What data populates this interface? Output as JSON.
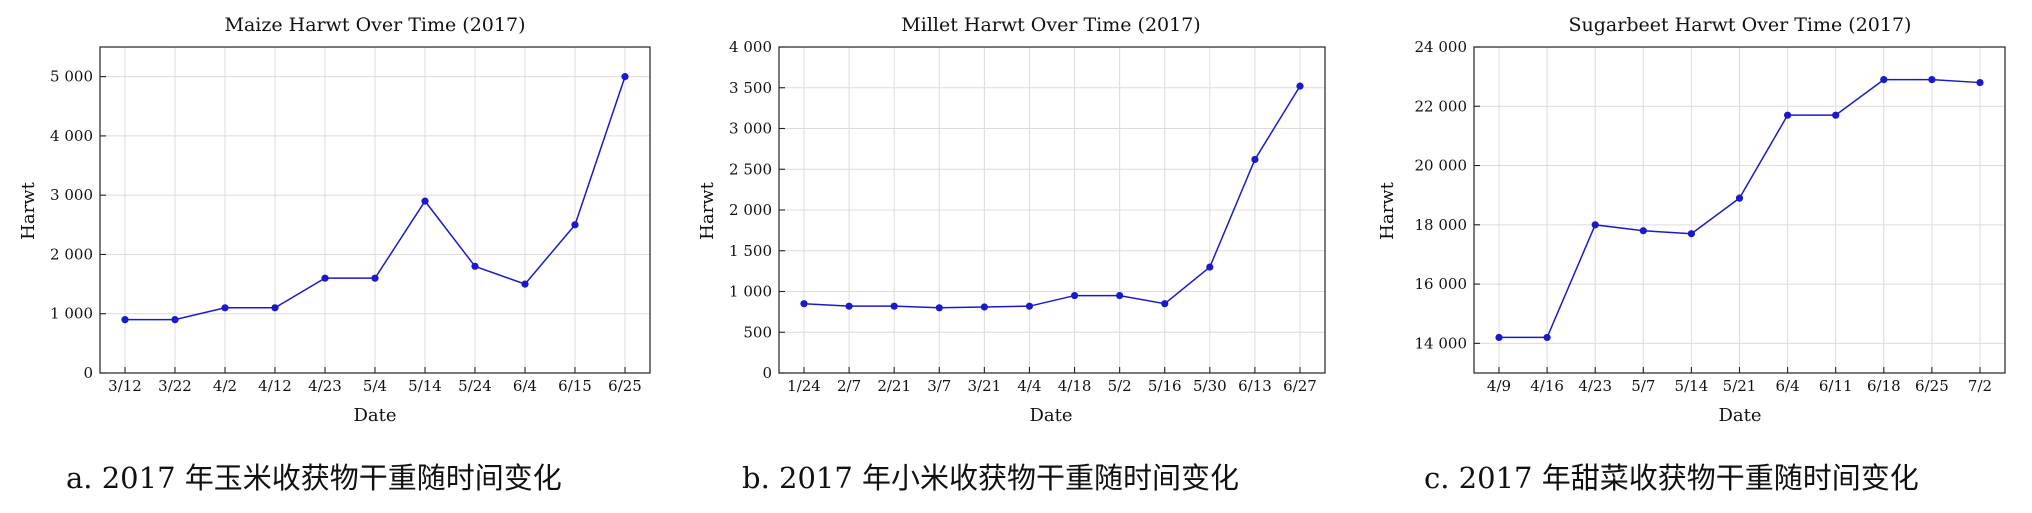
{
  "colors": {
    "series": "#1a1acc",
    "grid": "#dcdcdc",
    "axis": "#222222"
  },
  "chart_data": [
    {
      "type": "line",
      "title": "Maize Harwt Over Time (2017)",
      "xlabel": "Date",
      "ylabel": "Harwt",
      "categories": [
        "3/12",
        "3/22",
        "4/2",
        "4/12",
        "4/23",
        "5/4",
        "5/14",
        "5/24",
        "6/4",
        "6/15",
        "6/25"
      ],
      "series": [
        {
          "values": [
            900,
            900,
            1100,
            1100,
            1600,
            1600,
            2900,
            1800,
            1500,
            2500,
            5000
          ]
        }
      ],
      "ylim": [
        0,
        5500
      ],
      "yticks": [
        0,
        1000,
        2000,
        3000,
        4000,
        5000
      ],
      "ytick_labels": [
        "0",
        "1 000",
        "2 000",
        "3 000",
        "4 000",
        "5 000"
      ],
      "grid": true,
      "caption": "a. 2017 年玉米收获物干重随时间变化"
    },
    {
      "type": "line",
      "title": "Millet Harwt Over Time (2017)",
      "xlabel": "Date",
      "ylabel": "Harwt",
      "categories": [
        "1/24",
        "2/7",
        "2/21",
        "3/7",
        "3/21",
        "4/4",
        "4/18",
        "5/2",
        "5/16",
        "5/30",
        "6/13",
        "6/27"
      ],
      "series": [
        {
          "values": [
            850,
            820,
            820,
            800,
            810,
            820,
            950,
            950,
            850,
            1300,
            2620,
            3520
          ]
        }
      ],
      "ylim": [
        0,
        4000
      ],
      "yticks": [
        0,
        500,
        1000,
        1500,
        2000,
        2500,
        3000,
        3500,
        4000
      ],
      "ytick_labels": [
        "0",
        "500",
        "1 000",
        "1 500",
        "2 000",
        "2 500",
        "3 000",
        "3 500",
        "4 000"
      ],
      "grid": true,
      "caption": "b. 2017 年小米收获物干重随时间变化"
    },
    {
      "type": "line",
      "title": "Sugarbeet Harwt Over Time (2017)",
      "xlabel": "Date",
      "ylabel": "Harwt",
      "categories": [
        "4/9",
        "4/16",
        "4/23",
        "5/7",
        "5/14",
        "5/21",
        "6/4",
        "6/11",
        "6/18",
        "6/25",
        "7/2"
      ],
      "series": [
        {
          "values": [
            14200,
            14200,
            18000,
            17800,
            17700,
            18900,
            21700,
            21700,
            22900,
            22900,
            22800
          ]
        }
      ],
      "ylim": [
        13000,
        24000
      ],
      "yticks": [
        14000,
        16000,
        18000,
        20000,
        22000,
        24000
      ],
      "ytick_labels": [
        "14 000",
        "16 000",
        "18 000",
        "20 000",
        "22 000",
        "24 000"
      ],
      "grid": true,
      "caption": "c. 2017 年甜菜收获物干重随时间变化"
    }
  ]
}
